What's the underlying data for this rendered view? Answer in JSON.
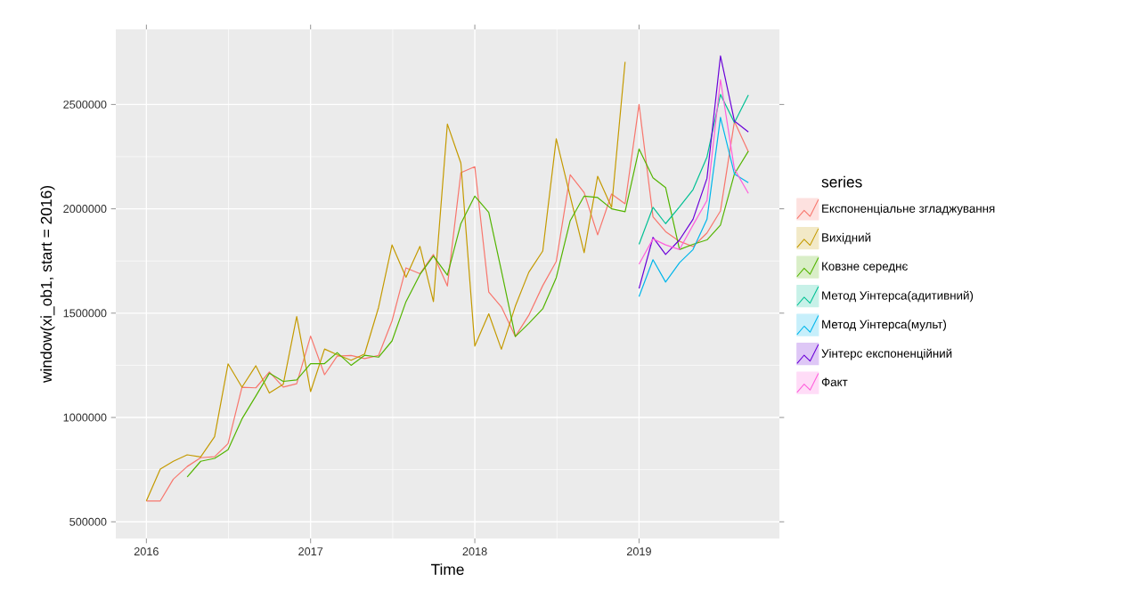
{
  "chart_data": {
    "type": "line",
    "xlabel": "Time",
    "ylabel": "window(xi_ob1, start = 2016)",
    "legend_title": "series",
    "x": [
      "2016-01",
      "2016-02",
      "2016-03",
      "2016-04",
      "2016-05",
      "2016-06",
      "2016-07",
      "2016-08",
      "2016-09",
      "2016-10",
      "2016-11",
      "2016-12",
      "2017-01",
      "2017-02",
      "2017-03",
      "2017-04",
      "2017-05",
      "2017-06",
      "2017-07",
      "2017-08",
      "2017-09",
      "2017-10",
      "2017-11",
      "2017-12",
      "2018-01",
      "2018-02",
      "2018-03",
      "2018-04",
      "2018-05",
      "2018-06",
      "2018-07",
      "2018-08",
      "2018-09",
      "2018-10",
      "2018-11",
      "2018-12",
      "2019-01",
      "2019-02",
      "2019-03",
      "2019-04",
      "2019-05",
      "2019-06",
      "2019-07",
      "2019-08",
      "2019-09"
    ],
    "series": [
      {
        "name": "Експоненціальне згладжування",
        "color": "#f8766d",
        "values": [
          600000,
          600000,
          704000,
          765000,
          807000,
          812000,
          875000,
          1145000,
          1142000,
          1218000,
          1146000,
          1162000,
          1390000,
          1205000,
          1294000,
          1297000,
          1282000,
          1297000,
          1463000,
          1717000,
          1689000,
          1781000,
          1630000,
          2173000,
          2202000,
          1601000,
          1530000,
          1388000,
          1490000,
          1632000,
          1748000,
          2163000,
          2078000,
          1875000,
          2071000,
          2024000,
          2500000,
          1962000,
          1891000,
          1844000,
          1819000,
          1884000,
          1990000,
          2418000,
          2273000
        ]
      },
      {
        "name": "Вихідний",
        "color": "#c49a00",
        "values": [
          600000,
          753000,
          790000,
          821000,
          811000,
          908000,
          1257000,
          1145000,
          1248000,
          1117000,
          1159000,
          1484000,
          1124000,
          1328000,
          1301000,
          1274000,
          1304000,
          1527000,
          1827000,
          1672000,
          1820000,
          1555000,
          2406000,
          2219000,
          1342000,
          1497000,
          1327000,
          1533000,
          1696000,
          1798000,
          2336000,
          2060000,
          1790000,
          2156000,
          2007000,
          2704000,
          null,
          null,
          null,
          null,
          null,
          null,
          null,
          null,
          null
        ]
      },
      {
        "name": "Ковзне середнє",
        "color": "#53b400",
        "values": [
          null,
          null,
          null,
          715000,
          790000,
          804000,
          845000,
          993000,
          1103000,
          1212000,
          1173000,
          1180000,
          1258000,
          1258000,
          1311000,
          1250000,
          1298000,
          1289000,
          1367000,
          1555000,
          1685000,
          1774000,
          1682000,
          1929000,
          2061000,
          1983000,
          1703000,
          1388000,
          1451000,
          1521000,
          1670000,
          1943000,
          2061000,
          2054000,
          2000000,
          1986000,
          2287000,
          2149000,
          2102000,
          1805000,
          1830000,
          1851000,
          1922000,
          2167000,
          2276000
        ]
      },
      {
        "name": "Метод Уінтерса(адитивний)",
        "color": "#00c094",
        "values": [
          null,
          null,
          null,
          null,
          null,
          null,
          null,
          null,
          null,
          null,
          null,
          null,
          null,
          null,
          null,
          null,
          null,
          null,
          null,
          null,
          null,
          null,
          null,
          null,
          null,
          null,
          null,
          null,
          null,
          null,
          null,
          null,
          null,
          null,
          null,
          null,
          1830000,
          2007000,
          1929000,
          2010000,
          2092000,
          2248000,
          2548000,
          2413000,
          2545000
        ]
      },
      {
        "name": "Метод Уінтерса(мульт)",
        "color": "#00b6eb",
        "values": [
          null,
          null,
          null,
          null,
          null,
          null,
          null,
          null,
          null,
          null,
          null,
          null,
          null,
          null,
          null,
          null,
          null,
          null,
          null,
          null,
          null,
          null,
          null,
          null,
          null,
          null,
          null,
          null,
          null,
          null,
          null,
          null,
          null,
          null,
          null,
          null,
          1579000,
          1756000,
          1649000,
          1742000,
          1805000,
          1950000,
          2438000,
          2167000,
          2125000
        ]
      },
      {
        "name": "Уінтерс експоненційний",
        "color": "#6a00d8",
        "values": [
          null,
          null,
          null,
          null,
          null,
          null,
          null,
          null,
          null,
          null,
          null,
          null,
          null,
          null,
          null,
          null,
          null,
          null,
          null,
          null,
          null,
          null,
          null,
          null,
          null,
          null,
          null,
          null,
          null,
          null,
          null,
          null,
          null,
          null,
          null,
          null,
          1618000,
          1863000,
          1781000,
          1851000,
          1950000,
          2146000,
          2733000,
          2421000,
          2368000
        ]
      },
      {
        "name": "Факт",
        "color": "#ff5fdc",
        "values": [
          null,
          null,
          null,
          null,
          null,
          null,
          null,
          null,
          null,
          null,
          null,
          null,
          null,
          null,
          null,
          null,
          null,
          null,
          null,
          null,
          null,
          null,
          null,
          null,
          null,
          null,
          null,
          null,
          null,
          null,
          null,
          null,
          null,
          null,
          null,
          null,
          1735000,
          1856000,
          1827000,
          1805000,
          1922000,
          2040000,
          2619000,
          2191000,
          2074000
        ]
      }
    ],
    "xlim": [
      "2015-10-25",
      "2019-11-09"
    ],
    "xticks": [
      "2016",
      "2017",
      "2018",
      "2019"
    ],
    "ylim": [
      420000,
      2860000
    ],
    "yticks": [
      500000,
      1000000,
      1500000,
      2000000,
      2500000
    ],
    "grid": true,
    "legend": "right"
  }
}
